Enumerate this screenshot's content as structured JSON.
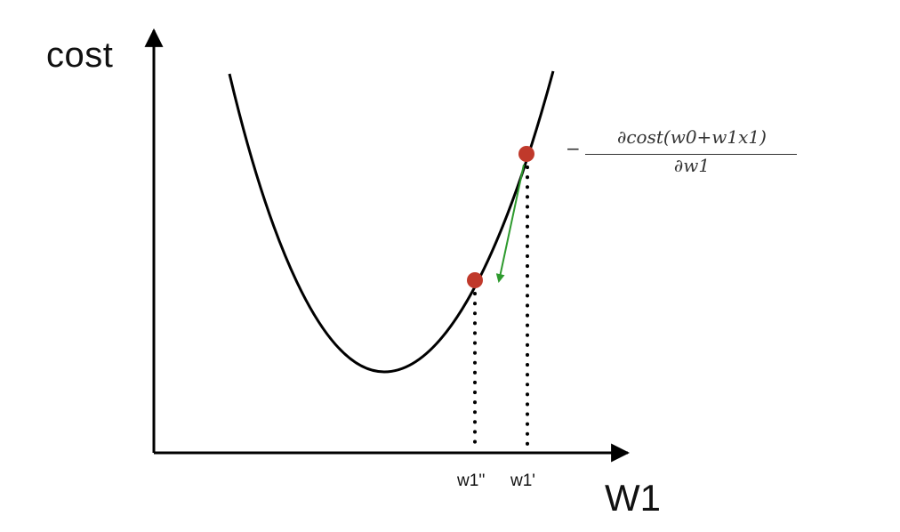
{
  "diagram": {
    "y_axis_label": "cost",
    "x_axis_label": "W1",
    "ticks": {
      "w1_double_prime": "w1''",
      "w1_prime": "w1'"
    },
    "gradient_formula": {
      "sign": "−",
      "numerator": "∂cost(w0+w1x1)",
      "denominator": "∂w1"
    },
    "colors": {
      "curve": "#000000",
      "points": "#c0392b",
      "arrow": "#2e9a2e"
    }
  }
}
